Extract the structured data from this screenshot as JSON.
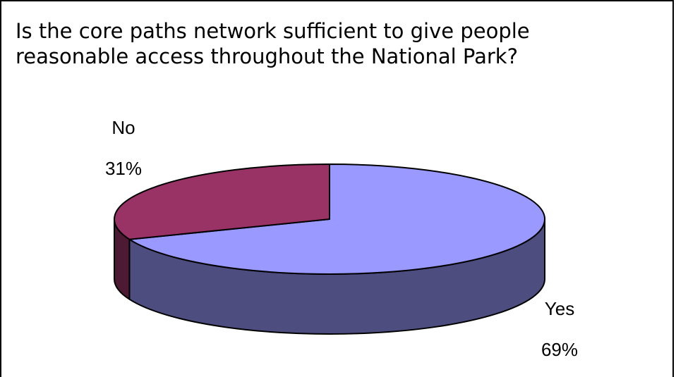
{
  "chart_data": {
    "type": "pie",
    "title": "Is the core paths network sufficient to give people\nreasonable access throughout the National Park?",
    "categories": [
      "Yes",
      "No"
    ],
    "values": [
      69,
      31
    ],
    "value_labels": [
      "69%",
      "31%"
    ],
    "colors": [
      "#9999FF",
      "#993366"
    ],
    "side_colors": [
      "#4D4D80",
      "#4D1A33"
    ],
    "style": "3d-exploded-none",
    "legend": "none"
  }
}
